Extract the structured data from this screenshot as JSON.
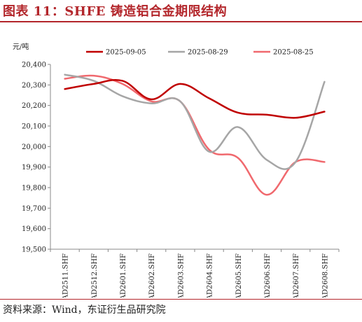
{
  "title": "图表 11：SHFE 铸造铝合金期限结构",
  "source": "资料来源：Wind，东证衍生品研究院",
  "colors": {
    "accent": "#b3262b",
    "series": [
      "#c00000",
      "#a6a6a6",
      "#f0696e"
    ]
  },
  "chart_data": {
    "type": "line",
    "ylabel": "元/吨",
    "ylim": [
      19500,
      20400
    ],
    "yticks": [
      19500,
      19600,
      19700,
      19800,
      19900,
      20000,
      20100,
      20200,
      20300,
      20400
    ],
    "ytick_labels": [
      "19,500",
      "19,600",
      "19,700",
      "19,800",
      "19,900",
      "20,000",
      "20,100",
      "20,200",
      "20,300",
      "20,400"
    ],
    "categories": [
      "AD2511.SHF",
      "AD2512.SHF",
      "AD2601.SHF",
      "AD2602.SHF",
      "AD2603.SHF",
      "AD2604.SHF",
      "AD2605.SHF",
      "AD2606.SHF",
      "AD2607.SHF",
      "AD2608.SHF"
    ],
    "legend_position": "top",
    "grid": false,
    "series": [
      {
        "name": "2025-09-05",
        "values": [
          20280,
          20305,
          20320,
          20230,
          20305,
          20235,
          20165,
          20155,
          20140,
          20170
        ]
      },
      {
        "name": "2025-08-29",
        "values": [
          20350,
          20320,
          20245,
          20210,
          20220,
          19975,
          20095,
          19935,
          19925,
          20315
        ]
      },
      {
        "name": "2025-08-25",
        "values": [
          20330,
          20345,
          20305,
          20220,
          20220,
          19985,
          19945,
          19765,
          19925,
          19925
        ]
      }
    ]
  }
}
